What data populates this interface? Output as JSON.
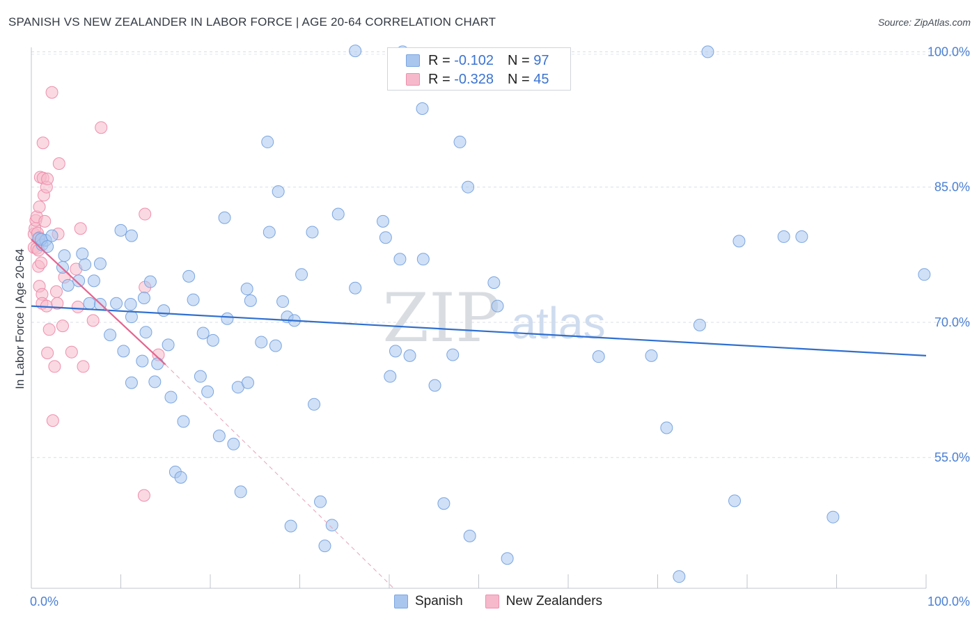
{
  "title": "SPANISH VS NEW ZEALANDER IN LABOR FORCE | AGE 20-64 CORRELATION CHART",
  "source": "Source: ZipAtlas.com",
  "watermark": {
    "big": "ZIP",
    "small": "atlas"
  },
  "legend": {
    "rows": [
      {
        "r_label": "R =",
        "r_value": "-0.102",
        "n_label": "N =",
        "n_value": "97"
      },
      {
        "r_label": "R =",
        "r_value": "-0.328",
        "n_label": "N =",
        "n_value": "45"
      }
    ]
  },
  "colors": {
    "spanish_fill": "#a9c6ef",
    "spanish_stroke": "#7aa5e0",
    "spanish_line": "#2f6fcf",
    "nz_fill": "#f6b9cb",
    "nz_stroke": "#ee8fad",
    "nz_line": "#e4648f",
    "tick_text": "#4a7fd4"
  },
  "chart_data": {
    "type": "scatter",
    "title": "SPANISH VS NEW ZEALANDER IN LABOR FORCE | AGE 20-64 CORRELATION CHART",
    "xlabel": "",
    "ylabel": "In Labor Force | Age 20-64",
    "xlim": [
      0,
      100
    ],
    "ylim": [
      40.5,
      101.5
    ],
    "x_tick_labels": [
      "0.0%",
      "100.0%"
    ],
    "y_ticks": [
      {
        "value": 100,
        "label": "100.0%"
      },
      {
        "value": 85,
        "label": "85.0%"
      },
      {
        "value": 70,
        "label": "70.0%"
      },
      {
        "value": 55,
        "label": "55.0%"
      }
    ],
    "grid": true,
    "legend_position": "top-center",
    "series": [
      {
        "name": "Spanish",
        "r": -0.102,
        "n": 97,
        "trend": {
          "x": [
            0,
            100
          ],
          "y": [
            71.8,
            66.3
          ]
        },
        "points": [
          [
            0.8,
            79.3
          ],
          [
            1.2,
            78.6
          ],
          [
            1.6,
            79.1
          ],
          [
            1.1,
            79.2
          ],
          [
            2.3,
            79.6
          ],
          [
            1.8,
            78.4
          ],
          [
            3.7,
            77.4
          ],
          [
            3.5,
            76.1
          ],
          [
            5.7,
            77.6
          ],
          [
            4.1,
            74.1
          ],
          [
            5.3,
            74.6
          ],
          [
            6.0,
            76.4
          ],
          [
            7.0,
            74.6
          ],
          [
            7.7,
            76.5
          ],
          [
            6.5,
            72.1
          ],
          [
            7.7,
            72.0
          ],
          [
            9.5,
            72.1
          ],
          [
            11.1,
            72.0
          ],
          [
            8.8,
            68.6
          ],
          [
            10.0,
            80.2
          ],
          [
            11.2,
            79.6
          ],
          [
            10.3,
            66.8
          ],
          [
            11.2,
            70.6
          ],
          [
            11.2,
            63.3
          ],
          [
            12.4,
            65.7
          ],
          [
            12.6,
            72.7
          ],
          [
            12.8,
            68.9
          ],
          [
            13.3,
            74.5
          ],
          [
            13.8,
            63.4
          ],
          [
            14.1,
            65.4
          ],
          [
            14.8,
            71.3
          ],
          [
            15.3,
            67.5
          ],
          [
            15.6,
            61.7
          ],
          [
            16.1,
            53.4
          ],
          [
            16.7,
            52.8
          ],
          [
            17.0,
            59.0
          ],
          [
            17.6,
            75.1
          ],
          [
            18.1,
            72.5
          ],
          [
            18.9,
            64.0
          ],
          [
            19.2,
            68.8
          ],
          [
            19.7,
            62.3
          ],
          [
            20.3,
            68.0
          ],
          [
            21.0,
            57.4
          ],
          [
            21.6,
            81.6
          ],
          [
            21.9,
            70.4
          ],
          [
            22.6,
            56.5
          ],
          [
            23.1,
            62.8
          ],
          [
            23.4,
            51.2
          ],
          [
            24.1,
            73.7
          ],
          [
            24.2,
            63.3
          ],
          [
            24.5,
            72.4
          ],
          [
            25.7,
            67.8
          ],
          [
            26.4,
            90.0
          ],
          [
            26.6,
            80.0
          ],
          [
            27.3,
            67.4
          ],
          [
            27.6,
            84.5
          ],
          [
            28.1,
            72.3
          ],
          [
            28.6,
            70.6
          ],
          [
            29.0,
            47.4
          ],
          [
            29.4,
            70.2
          ],
          [
            30.2,
            75.3
          ],
          [
            31.4,
            80.0
          ],
          [
            31.6,
            60.9
          ],
          [
            32.3,
            50.1
          ],
          [
            32.8,
            45.2
          ],
          [
            33.6,
            47.5
          ],
          [
            34.3,
            82.0
          ],
          [
            36.2,
            73.8
          ],
          [
            36.2,
            100.1
          ],
          [
            39.3,
            81.2
          ],
          [
            39.6,
            79.4
          ],
          [
            40.1,
            64.0
          ],
          [
            40.7,
            66.8
          ],
          [
            41.2,
            77.0
          ],
          [
            41.5,
            100.0
          ],
          [
            42.3,
            66.3
          ],
          [
            43.7,
            93.7
          ],
          [
            43.8,
            77.0
          ],
          [
            45.1,
            63.0
          ],
          [
            46.1,
            49.9
          ],
          [
            47.1,
            66.4
          ],
          [
            47.9,
            90.0
          ],
          [
            48.8,
            85.0
          ],
          [
            49.0,
            46.3
          ],
          [
            51.7,
            74.4
          ],
          [
            52.1,
            71.8
          ],
          [
            53.2,
            43.8
          ],
          [
            63.4,
            66.2
          ],
          [
            69.3,
            66.3
          ],
          [
            71.0,
            58.3
          ],
          [
            72.4,
            41.8
          ],
          [
            74.7,
            69.7
          ],
          [
            75.6,
            100.0
          ],
          [
            78.6,
            50.2
          ],
          [
            79.1,
            79.0
          ],
          [
            84.1,
            79.5
          ],
          [
            86.1,
            79.5
          ],
          [
            89.6,
            48.4
          ],
          [
            99.8,
            75.3
          ]
        ]
      },
      {
        "name": "New Zealanders",
        "r": -0.328,
        "n": 45,
        "trend": {
          "x": [
            0,
            15
          ],
          "y": [
            79.2,
            65.3
          ]
        },
        "trend_extension": {
          "x": [
            15,
            40.5
          ],
          "y": [
            65.3,
            40.5
          ]
        },
        "points": [
          [
            0.3,
            78.3
          ],
          [
            0.3,
            79.8
          ],
          [
            0.4,
            80.4
          ],
          [
            0.5,
            81.3
          ],
          [
            0.6,
            81.7
          ],
          [
            0.6,
            78.2
          ],
          [
            0.7,
            79.9
          ],
          [
            0.8,
            78.0
          ],
          [
            0.9,
            79.4
          ],
          [
            0.8,
            76.2
          ],
          [
            0.9,
            74.0
          ],
          [
            0.9,
            82.8
          ],
          [
            1.0,
            86.1
          ],
          [
            1.1,
            76.6
          ],
          [
            1.2,
            73.1
          ],
          [
            1.2,
            72.1
          ],
          [
            1.3,
            86.0
          ],
          [
            1.3,
            89.9
          ],
          [
            1.4,
            84.1
          ],
          [
            1.5,
            81.2
          ],
          [
            1.7,
            85.0
          ],
          [
            1.7,
            71.8
          ],
          [
            1.8,
            66.6
          ],
          [
            1.8,
            85.9
          ],
          [
            2.0,
            69.2
          ],
          [
            2.3,
            95.5
          ],
          [
            2.4,
            59.1
          ],
          [
            2.6,
            65.1
          ],
          [
            2.8,
            73.4
          ],
          [
            2.9,
            72.1
          ],
          [
            3.0,
            79.8
          ],
          [
            3.1,
            87.6
          ],
          [
            3.5,
            69.6
          ],
          [
            3.7,
            75.0
          ],
          [
            4.5,
            66.7
          ],
          [
            5.0,
            75.9
          ],
          [
            5.2,
            71.7
          ],
          [
            5.5,
            80.4
          ],
          [
            5.8,
            65.1
          ],
          [
            6.9,
            70.2
          ],
          [
            7.8,
            91.6
          ],
          [
            12.7,
            82.0
          ],
          [
            12.6,
            50.8
          ],
          [
            12.7,
            73.9
          ],
          [
            14.2,
            66.4
          ]
        ]
      }
    ]
  }
}
